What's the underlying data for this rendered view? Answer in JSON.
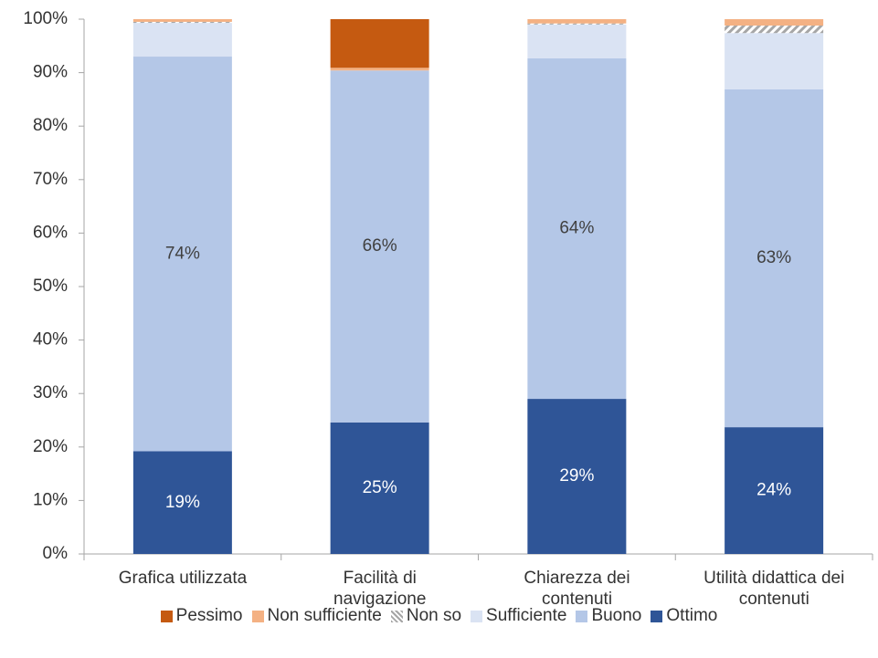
{
  "chart_data": {
    "type": "stacked_bar",
    "categories": [
      "Grafica utilizzata",
      "Facilità di\nnavigazione",
      "Chiarezza dei\ncontenuti",
      "Utilità didattica dei\ncontenuti"
    ],
    "series": [
      {
        "name": "Pessimo",
        "color": "#c55a11",
        "values": [
          0,
          9.1,
          0,
          0
        ]
      },
      {
        "name": "Non sufficiente",
        "color": "#f4b183",
        "values": [
          0.5,
          0.5,
          0.8,
          1.2
        ]
      },
      {
        "name": "Non so",
        "color": "#a6a6a6",
        "pattern": "hatch",
        "values": [
          0.2,
          0,
          0.2,
          1.4
        ]
      },
      {
        "name": "Sufficiente",
        "color": "#dae3f3",
        "values": [
          6.3,
          0,
          6.3,
          10.5
        ]
      },
      {
        "name": "Buono",
        "color": "#b4c7e7",
        "values": [
          73.8,
          65.8,
          63.7,
          63.2
        ],
        "value_labels": [
          "74%",
          "66%",
          "64%",
          "63%"
        ],
        "label_color": "#404040"
      },
      {
        "name": "Ottimo",
        "color": "#2f5597",
        "values": [
          19.2,
          24.6,
          29.0,
          23.7
        ],
        "value_labels": [
          "19%",
          "25%",
          "29%",
          "24%"
        ],
        "label_color": "#ffffff"
      }
    ],
    "ylim": [
      0,
      100
    ],
    "yticks": [
      {
        "value": 0,
        "label": "0%"
      },
      {
        "value": 10,
        "label": "10%"
      },
      {
        "value": 20,
        "label": "20%"
      },
      {
        "value": 30,
        "label": "30%"
      },
      {
        "value": 40,
        "label": "40%"
      },
      {
        "value": 50,
        "label": "50%"
      },
      {
        "value": 60,
        "label": "60%"
      },
      {
        "value": 70,
        "label": "70%"
      },
      {
        "value": 80,
        "label": "80%"
      },
      {
        "value": 90,
        "label": "90%"
      },
      {
        "value": 100,
        "label": "100%"
      }
    ],
    "legend": "bottom"
  }
}
